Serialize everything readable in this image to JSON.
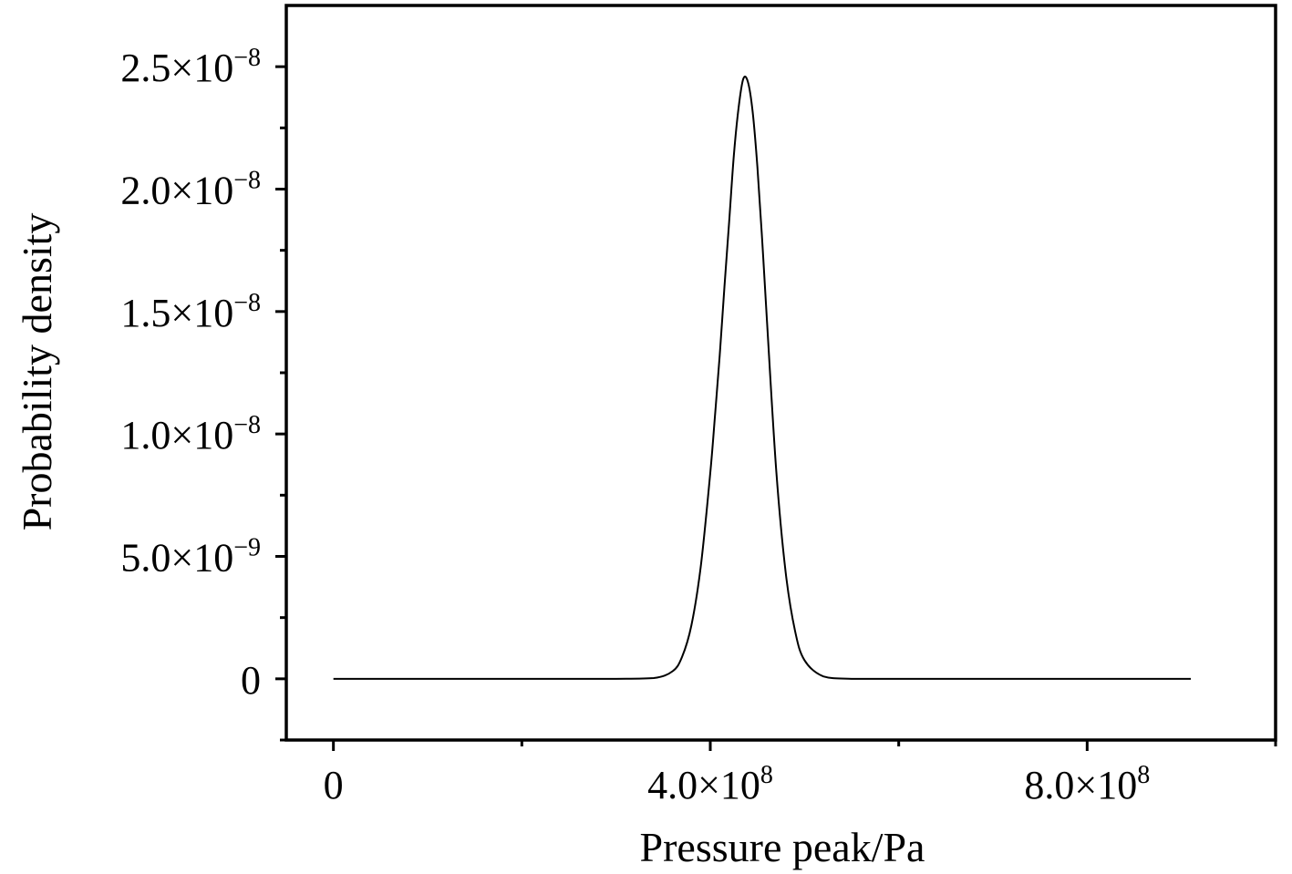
{
  "chart_data": {
    "type": "line",
    "title": "",
    "xlabel": "Pressure peak/Pa",
    "ylabel": "Probability density",
    "xlim": [
      -50000000,
      1000000000
    ],
    "ylim": [
      -2.5e-09,
      2.75e-08
    ],
    "x_ticks": [
      {
        "value": 0,
        "mantissa": "0",
        "exp": ""
      },
      {
        "value": 400000000,
        "mantissa": "4.0×10",
        "exp": "8"
      },
      {
        "value": 800000000,
        "mantissa": "8.0×10",
        "exp": "8"
      }
    ],
    "x_minor_ticks": [
      200000000,
      600000000,
      1000000000
    ],
    "y_ticks": [
      {
        "value": 0,
        "mantissa": "0",
        "exp": ""
      },
      {
        "value": 5e-09,
        "mantissa": "5.0×10",
        "exp": "−9"
      },
      {
        "value": 1e-08,
        "mantissa": "1.0×10",
        "exp": "−8"
      },
      {
        "value": 1.5e-08,
        "mantissa": "1.5×10",
        "exp": "−8"
      },
      {
        "value": 2e-08,
        "mantissa": "2.0×10",
        "exp": "−8"
      },
      {
        "value": 2.5e-08,
        "mantissa": "2.5×10",
        "exp": "−8"
      }
    ],
    "y_minor_ticks": [
      -2.5e-09,
      2.5e-09,
      7.5e-09,
      1.25e-08,
      1.75e-08,
      2.25e-08
    ],
    "grid": false,
    "series": [
      {
        "color": "#000000",
        "x": [
          0,
          100000000,
          200000000,
          300000000,
          340000000,
          360000000,
          370000000,
          380000000,
          390000000,
          400000000,
          405000000,
          410000000,
          415000000,
          420000000,
          425000000,
          430000000,
          435000000,
          440000000,
          445000000,
          450000000,
          455000000,
          460000000,
          470000000,
          480000000,
          490000000,
          500000000,
          520000000,
          550000000,
          600000000,
          700000000,
          800000000,
          910000000
        ],
        "y": [
          0,
          0,
          0,
          0,
          3e-11,
          3.1e-10,
          8.9e-10,
          2.19e-09,
          4.62e-09,
          8.41e-09,
          1.075e-08,
          1.32e-08,
          1.599e-08,
          1.865e-08,
          2.137e-08,
          2.331e-08,
          2.45e-08,
          2.437e-08,
          2.315e-08,
          2.091e-08,
          1.797e-08,
          1.472e-08,
          8.51e-09,
          4.35e-09,
          1.95e-09,
          7.6e-10,
          1e-10,
          0,
          0,
          0,
          0,
          0
        ]
      }
    ]
  }
}
